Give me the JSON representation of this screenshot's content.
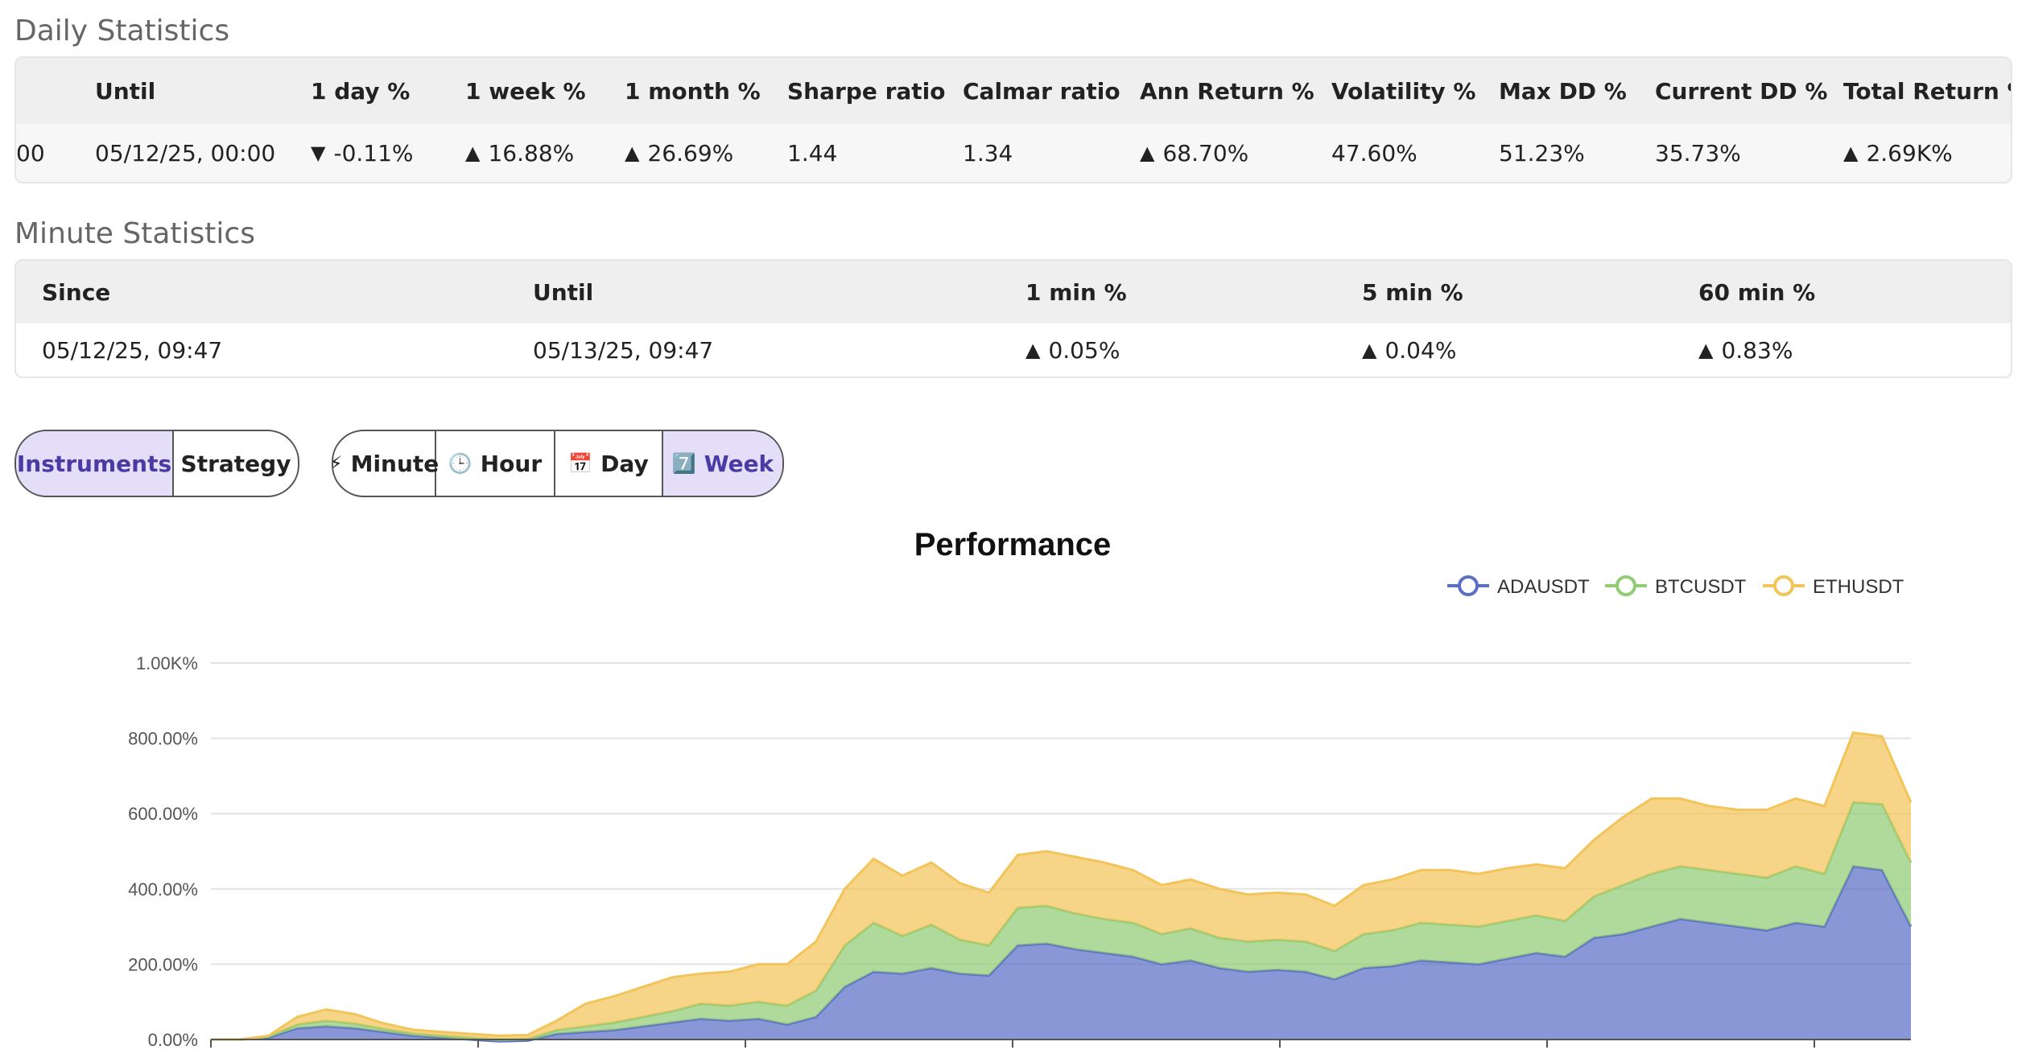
{
  "daily": {
    "title": "Daily Statistics",
    "headers": [
      "Until",
      "1 day %",
      "1 week %",
      "1 month %",
      "Sharpe ratio",
      "Calmar ratio",
      "Ann Return %",
      "Volatility %",
      "Max DD %",
      "Current DD %",
      "Total Return %"
    ],
    "row": {
      "since_clipped": "00",
      "until": "05/12/25, 00:00",
      "day": "-0.11%",
      "week": "16.88%",
      "month": "26.69%",
      "sharpe": "1.44",
      "calmar": "1.34",
      "ann_return": "68.70%",
      "volatility": "47.60%",
      "max_dd": "51.23%",
      "current_dd": "35.73%",
      "total_return": "2.69K%"
    }
  },
  "minute": {
    "title": "Minute Statistics",
    "headers": [
      "Since",
      "Until",
      "1 min %",
      "5 min %",
      "60 min %"
    ],
    "row": {
      "since": "05/12/25, 09:47",
      "until": "05/13/25, 09:47",
      "min1": "0.05%",
      "min5": "0.04%",
      "min60": "0.83%"
    }
  },
  "arrows": {
    "up": "▲",
    "down": "▼"
  },
  "view_toggle": {
    "instruments": "Instruments",
    "strategy": "Strategy",
    "active": "instruments"
  },
  "period_toggle": {
    "minute": {
      "icon": "⚡",
      "label": "Minute"
    },
    "hour": {
      "icon": "🕒",
      "label": "Hour"
    },
    "day": {
      "icon": "📅",
      "label": "Day"
    },
    "week": {
      "icon": "7️⃣",
      "label": "Week"
    },
    "active": "week"
  },
  "colors": {
    "positive": "#4cc38a",
    "negative": "#e0566b",
    "active_button_bg": "#e4def8",
    "ada": "#5b6fc7",
    "btc": "#91cc75",
    "eth": "#f2c45a"
  },
  "chart_data": {
    "type": "area",
    "stacked": true,
    "title": "Performance",
    "legend_position": "top-right",
    "ylim": [
      0,
      1000
    ],
    "y_ticks": [
      "0.00%",
      "200.00%",
      "400.00%",
      "600.00%",
      "800.00%",
      "1.00K%"
    ],
    "grid": true,
    "x_points": 60,
    "series": [
      {
        "name": "ADAUSDT",
        "color": "#5b6fc7",
        "values": [
          0,
          0,
          5,
          30,
          35,
          30,
          20,
          10,
          5,
          0,
          -5,
          -3,
          15,
          20,
          25,
          35,
          45,
          55,
          50,
          55,
          40,
          60,
          140,
          180,
          175,
          190,
          175,
          170,
          250,
          255,
          240,
          230,
          220,
          200,
          210,
          190,
          180,
          185,
          180,
          160,
          190,
          195,
          210,
          205,
          200,
          215,
          230,
          220,
          270,
          280,
          300,
          320,
          310,
          300,
          290,
          310,
          300,
          460,
          450,
          300
        ]
      },
      {
        "name": "BTCUSDT",
        "color": "#91cc75",
        "values": [
          0,
          0,
          3,
          10,
          15,
          12,
          8,
          6,
          5,
          5,
          5,
          5,
          10,
          15,
          20,
          25,
          30,
          40,
          40,
          45,
          50,
          70,
          110,
          130,
          100,
          115,
          90,
          80,
          100,
          100,
          95,
          90,
          90,
          80,
          85,
          80,
          80,
          80,
          80,
          75,
          90,
          95,
          100,
          100,
          100,
          100,
          100,
          95,
          110,
          130,
          140,
          140,
          140,
          140,
          140,
          150,
          140,
          170,
          175,
          170
        ]
      },
      {
        "name": "ETHUSDT",
        "color": "#f2c45a",
        "values": [
          0,
          0,
          2,
          20,
          30,
          25,
          15,
          10,
          10,
          10,
          10,
          10,
          25,
          60,
          70,
          80,
          90,
          80,
          90,
          100,
          110,
          130,
          150,
          170,
          160,
          165,
          150,
          140,
          140,
          145,
          150,
          150,
          140,
          130,
          130,
          130,
          125,
          125,
          125,
          120,
          130,
          135,
          140,
          145,
          140,
          140,
          135,
          140,
          150,
          180,
          200,
          180,
          170,
          170,
          180,
          180,
          180,
          185,
          180,
          160
        ]
      }
    ]
  }
}
